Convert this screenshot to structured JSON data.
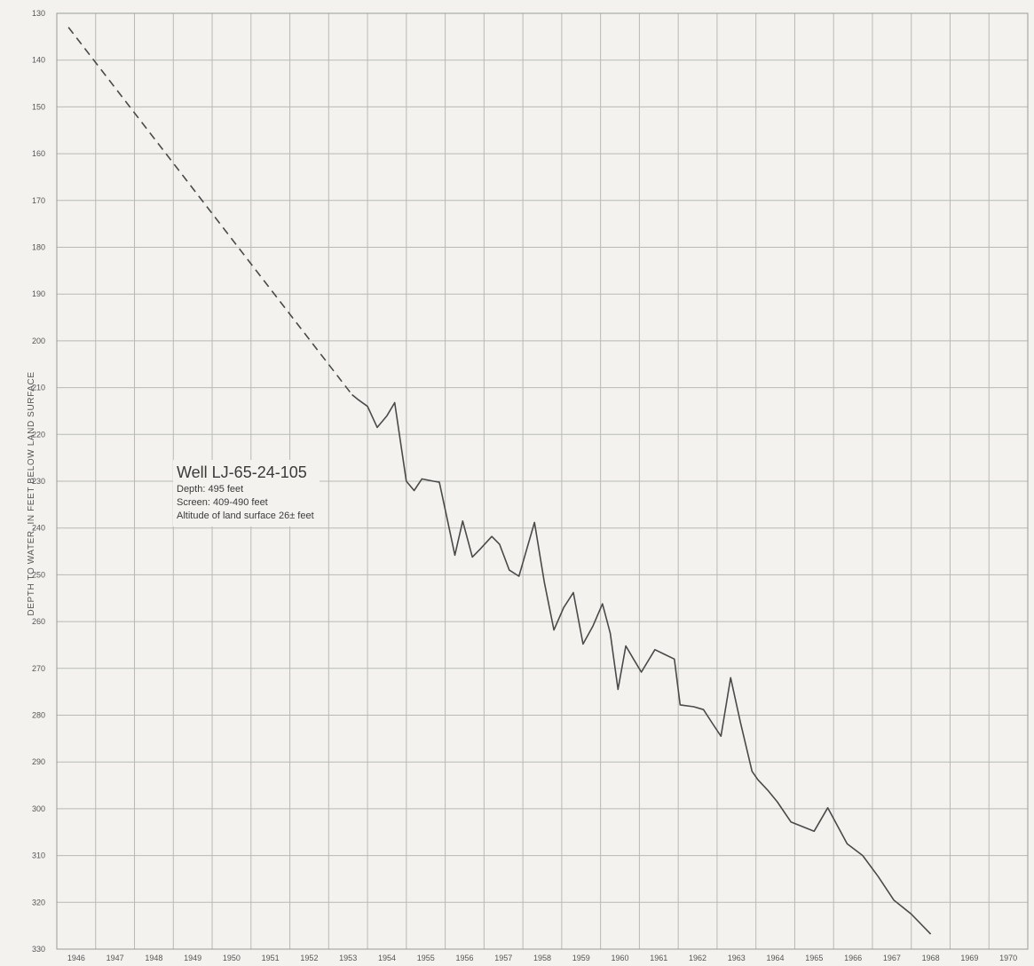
{
  "chart_data": {
    "type": "line",
    "title": "",
    "xlabel": "",
    "ylabel": "DEPTH TO WATER, IN FEET BELOW LAND SURFACE",
    "y_inverted": true,
    "ylim": [
      130,
      330
    ],
    "y_ticks": [
      130,
      140,
      150,
      160,
      170,
      180,
      190,
      200,
      210,
      220,
      230,
      240,
      250,
      260,
      270,
      280,
      290,
      300,
      310,
      320,
      330
    ],
    "x_categories": [
      "1946",
      "1947",
      "1948",
      "1949",
      "1950",
      "1951",
      "1952",
      "1953",
      "1954",
      "1955",
      "1956",
      "1957",
      "1958",
      "1959",
      "1960",
      "1961",
      "1962",
      "1963",
      "1964",
      "1965",
      "1966",
      "1967",
      "1968",
      "1969",
      "1970"
    ],
    "xlim": [
      1946,
      1971
    ],
    "grid": true,
    "series": [
      {
        "style": "dashed",
        "points": [
          [
            1946.3,
            133
          ],
          [
            1953.6,
            211.5
          ]
        ]
      },
      {
        "style": "solid",
        "points": [
          [
            1953.6,
            211.5
          ],
          [
            1953.75,
            212.5
          ],
          [
            1954.0,
            214.0
          ],
          [
            1954.25,
            218.5
          ],
          [
            1954.5,
            216.0
          ],
          [
            1954.7,
            213.2
          ],
          [
            1955.0,
            230.0
          ],
          [
            1955.2,
            232.0
          ],
          [
            1955.4,
            229.5
          ],
          [
            1955.7,
            230.0
          ],
          [
            1955.85,
            230.2
          ],
          [
            1956.05,
            238.0
          ],
          [
            1956.25,
            245.8
          ],
          [
            1956.45,
            238.5
          ],
          [
            1956.7,
            246.2
          ],
          [
            1956.9,
            244.5
          ],
          [
            1957.2,
            241.8
          ],
          [
            1957.4,
            243.5
          ],
          [
            1957.65,
            249.0
          ],
          [
            1957.9,
            250.3
          ],
          [
            1958.3,
            238.8
          ],
          [
            1958.55,
            251.5
          ],
          [
            1958.8,
            261.8
          ],
          [
            1959.05,
            257.0
          ],
          [
            1959.3,
            253.8
          ],
          [
            1959.55,
            264.8
          ],
          [
            1959.8,
            261.0
          ],
          [
            1960.05,
            256.2
          ],
          [
            1960.25,
            262.5
          ],
          [
            1960.45,
            274.5
          ],
          [
            1960.65,
            265.2
          ],
          [
            1960.85,
            268.0
          ],
          [
            1961.05,
            270.8
          ],
          [
            1961.4,
            266.0
          ],
          [
            1961.65,
            267.0
          ],
          [
            1961.9,
            268.0
          ],
          [
            1962.05,
            277.8
          ],
          [
            1962.4,
            278.2
          ],
          [
            1962.65,
            278.8
          ],
          [
            1962.9,
            282.0
          ],
          [
            1963.1,
            284.5
          ],
          [
            1963.35,
            272.0
          ],
          [
            1963.6,
            281.5
          ],
          [
            1963.9,
            292.0
          ],
          [
            1964.05,
            293.8
          ],
          [
            1964.3,
            296.0
          ],
          [
            1964.55,
            298.5
          ],
          [
            1964.9,
            302.8
          ],
          [
            1965.1,
            303.5
          ],
          [
            1965.5,
            304.8
          ],
          [
            1965.85,
            299.8
          ],
          [
            1966.35,
            307.5
          ],
          [
            1966.75,
            310.0
          ],
          [
            1967.15,
            314.5
          ],
          [
            1967.55,
            319.5
          ],
          [
            1968.0,
            322.5
          ],
          [
            1968.5,
            326.8
          ]
        ]
      }
    ],
    "annotation": {
      "title": "Well LJ-65-24-105",
      "lines": [
        "Depth: 495 feet",
        "Screen: 409-490 feet",
        "Altitude of land surface 26± feet"
      ]
    }
  }
}
